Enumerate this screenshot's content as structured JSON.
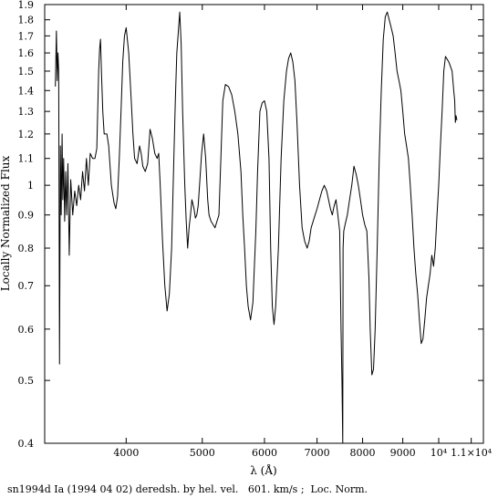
{
  "chart_data": {
    "type": "line",
    "title": "",
    "xlabel": "λ (Å)",
    "ylabel": "Locally Normalized Flux",
    "caption": "sn1994d Ia (1994 04 02) deredsh. by hel. vel.   601. km/s ;  Loc. Norm.",
    "x_scale": "log",
    "y_scale": "log",
    "xlim": [
      3150,
      11400
    ],
    "ylim": [
      0.4,
      1.9
    ],
    "grid": false,
    "x_ticks": [
      {
        "value": 4000,
        "label": "4000"
      },
      {
        "value": 5000,
        "label": "5000"
      },
      {
        "value": 6000,
        "label": "6000"
      },
      {
        "value": 7000,
        "label": "7000"
      },
      {
        "value": 8000,
        "label": "8000"
      },
      {
        "value": 9000,
        "label": "9000"
      },
      {
        "value": 10000,
        "label": "10⁴"
      },
      {
        "value": 11000,
        "label": "1.1×10⁴"
      }
    ],
    "y_ticks": [
      {
        "value": 0.4,
        "label": "0.4"
      },
      {
        "value": 0.5,
        "label": "0.5"
      },
      {
        "value": 0.6,
        "label": "0.6"
      },
      {
        "value": 0.7,
        "label": "0.7"
      },
      {
        "value": 0.8,
        "label": "0.8"
      },
      {
        "value": 0.9,
        "label": "0.9"
      },
      {
        "value": 1.0,
        "label": "1"
      },
      {
        "value": 1.1,
        "label": "1.1"
      },
      {
        "value": 1.2,
        "label": "1.2"
      },
      {
        "value": 1.3,
        "label": "1.3"
      },
      {
        "value": 1.4,
        "label": "1.4"
      },
      {
        "value": 1.5,
        "label": "1.5"
      },
      {
        "value": 1.6,
        "label": "1.6"
      },
      {
        "value": 1.7,
        "label": "1.7"
      },
      {
        "value": 1.8,
        "label": "1.8"
      },
      {
        "value": 1.9,
        "label": "1.9"
      }
    ],
    "series": [
      {
        "color": "#000000",
        "x": [
          3250,
          3260,
          3268,
          3275,
          3282,
          3290,
          3298,
          3306,
          3315,
          3322,
          3330,
          3340,
          3350,
          3360,
          3372,
          3385,
          3400,
          3420,
          3440,
          3460,
          3480,
          3500,
          3520,
          3540,
          3560,
          3580,
          3600,
          3625,
          3650,
          3670,
          3690,
          3700,
          3710,
          3720,
          3735,
          3750,
          3780,
          3800,
          3830,
          3860,
          3880,
          3900,
          3920,
          3940,
          3960,
          3980,
          4000,
          4030,
          4060,
          4080,
          4100,
          4130,
          4160,
          4180,
          4200,
          4230,
          4260,
          4290,
          4320,
          4350,
          4380,
          4400,
          4420,
          4450,
          4480,
          4510,
          4540,
          4570,
          4600,
          4620,
          4640,
          4660,
          4680,
          4700,
          4720,
          4750,
          4770,
          4790,
          4810,
          4830,
          4850,
          4880,
          4900,
          4920,
          4940,
          4960,
          4990,
          5020,
          5050,
          5080,
          5100,
          5130,
          5160,
          5190,
          5220,
          5250,
          5280,
          5310,
          5350,
          5400,
          5450,
          5500,
          5550,
          5600,
          5630,
          5660,
          5690,
          5720,
          5760,
          5800,
          5850,
          5880,
          5920,
          5960,
          6000,
          6040,
          6080,
          6110,
          6140,
          6170,
          6200,
          6250,
          6300,
          6350,
          6400,
          6440,
          6480,
          6520,
          6560,
          6600,
          6650,
          6700,
          6750,
          6800,
          6840,
          6880,
          6920,
          6960,
          7000,
          7050,
          7100,
          7150,
          7200,
          7240,
          7280,
          7320,
          7360,
          7400,
          7440,
          7480,
          7510,
          7530,
          7548,
          7555,
          7570,
          7600,
          7650,
          7700,
          7750,
          7800,
          7850,
          7900,
          7950,
          8000,
          8050,
          8100,
          8150,
          8180,
          8220,
          8260,
          8300,
          8350,
          8400,
          8450,
          8500,
          8550,
          8600,
          8650,
          8700,
          8750,
          8800,
          8850,
          8900,
          8950,
          9000,
          9050,
          9100,
          9150,
          9200,
          9250,
          9300,
          9350,
          9400,
          9450,
          9500,
          9550,
          9600,
          9650,
          9700,
          9750,
          9800,
          9850,
          9900,
          9950,
          10000,
          10050,
          10100,
          10150,
          10200,
          10300,
          10400,
          10450,
          10480,
          10500,
          10520,
          10550
        ],
        "y": [
          1.42,
          1.73,
          1.45,
          1.6,
          1.5,
          0.53,
          1.15,
          0.9,
          1.2,
          0.95,
          1.1,
          0.88,
          1.05,
          0.9,
          1.08,
          0.78,
          1.02,
          0.9,
          0.98,
          0.93,
          1.0,
          0.95,
          1.05,
          0.98,
          1.1,
          1.0,
          1.12,
          1.1,
          1.1,
          1.14,
          1.5,
          1.62,
          1.68,
          1.5,
          1.3,
          1.2,
          1.2,
          1.15,
          1.0,
          0.94,
          0.92,
          0.96,
          1.1,
          1.3,
          1.55,
          1.7,
          1.75,
          1.6,
          1.35,
          1.2,
          1.1,
          1.08,
          1.15,
          1.12,
          1.07,
          1.05,
          1.08,
          1.22,
          1.18,
          1.12,
          1.1,
          1.12,
          1.0,
          0.82,
          0.7,
          0.64,
          0.68,
          0.8,
          1.1,
          1.35,
          1.6,
          1.72,
          1.85,
          1.65,
          1.3,
          1.0,
          0.88,
          0.8,
          0.86,
          0.9,
          0.95,
          0.92,
          0.89,
          0.9,
          0.93,
          1.0,
          1.12,
          1.2,
          1.1,
          0.95,
          0.9,
          0.88,
          0.87,
          0.86,
          0.88,
          0.9,
          1.1,
          1.35,
          1.43,
          1.42,
          1.38,
          1.3,
          1.2,
          1.05,
          0.9,
          0.8,
          0.7,
          0.65,
          0.62,
          0.66,
          0.85,
          1.05,
          1.3,
          1.34,
          1.35,
          1.3,
          1.1,
          0.8,
          0.65,
          0.61,
          0.65,
          0.8,
          1.1,
          1.35,
          1.5,
          1.57,
          1.6,
          1.55,
          1.45,
          1.25,
          1.0,
          0.86,
          0.82,
          0.8,
          0.82,
          0.86,
          0.88,
          0.9,
          0.92,
          0.95,
          0.98,
          1.0,
          0.98,
          0.95,
          0.92,
          0.9,
          0.93,
          0.95,
          0.9,
          0.85,
          0.6,
          0.5,
          0.4,
          0.8,
          0.85,
          0.87,
          0.9,
          0.95,
          1.0,
          1.07,
          1.04,
          1.0,
          0.95,
          0.9,
          0.87,
          0.85,
          0.72,
          0.6,
          0.51,
          0.52,
          0.6,
          0.8,
          1.1,
          1.4,
          1.68,
          1.82,
          1.85,
          1.8,
          1.75,
          1.7,
          1.6,
          1.5,
          1.45,
          1.4,
          1.3,
          1.2,
          1.15,
          1.1,
          1.0,
          0.9,
          0.8,
          0.73,
          0.68,
          0.62,
          0.57,
          0.58,
          0.62,
          0.67,
          0.7,
          0.73,
          0.78,
          0.75,
          0.8,
          0.9,
          1.0,
          1.15,
          1.3,
          1.5,
          1.58,
          1.55,
          1.5,
          1.4,
          1.35,
          1.25,
          1.28,
          1.26
        ]
      }
    ]
  }
}
